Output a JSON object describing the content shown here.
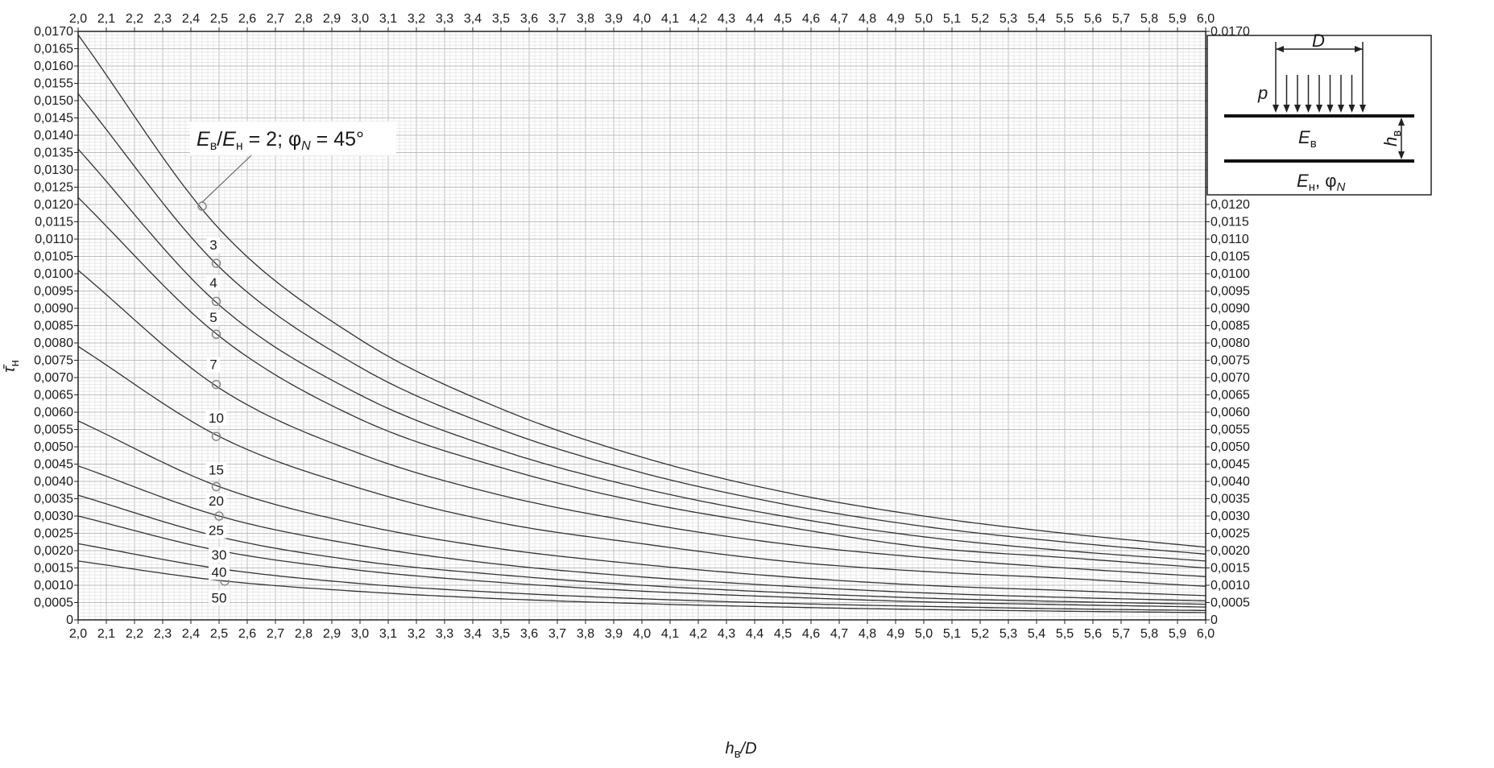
{
  "chart_data": {
    "type": "line",
    "xlabel": "h_в/D",
    "ylabel": "τ̄_н",
    "xlim": [
      2.0,
      6.0
    ],
    "ylim": [
      0,
      0.017
    ],
    "x_ticks": [
      "2,0",
      "2,1",
      "2,2",
      "2,3",
      "2,4",
      "2,5",
      "2,6",
      "2,7",
      "2,8",
      "2,9",
      "3,0",
      "3,1",
      "3,2",
      "3,3",
      "3,4",
      "3,5",
      "3,6",
      "3,7",
      "3,8",
      "3,9",
      "4,0",
      "4,1",
      "4,2",
      "4,3",
      "4,4",
      "4,5",
      "4,6",
      "4,7",
      "4,8",
      "4,9",
      "5,0",
      "5,1",
      "5,2",
      "5,3",
      "5,4",
      "5,5",
      "5,6",
      "5,7",
      "5,8",
      "5,9",
      "6,0"
    ],
    "y_ticks": [
      "0",
      "0,0005",
      "0,0010",
      "0,0015",
      "0,0020",
      "0,0025",
      "0,0030",
      "0,0035",
      "0,0040",
      "0,0045",
      "0,0050",
      "0,0055",
      "0,0060",
      "0,0065",
      "0,0070",
      "0,0075",
      "0,0080",
      "0,0085",
      "0,0090",
      "0,0095",
      "0,0100",
      "0,0105",
      "0,0110",
      "0,0115",
      "0,0120",
      "0,0125",
      "0,0130",
      "0,0135",
      "0,0140",
      "0,0145",
      "0,0150",
      "0,0155",
      "0,0160",
      "0,0165",
      "0,0170"
    ],
    "grid": true,
    "x_axis_position": "top and bottom",
    "y_axis_position": "left and right",
    "x": [
      2.0,
      2.5,
      3.0,
      3.5,
      4.0,
      4.5,
      5.0,
      5.5,
      6.0
    ],
    "series": [
      {
        "name": "2",
        "values": [
          0.0169,
          0.0113,
          0.0081,
          0.0061,
          0.0047,
          0.0037,
          0.003,
          0.0025,
          0.0021
        ],
        "marker": {
          "x": 2.44,
          "y": 0.01195
        }
      },
      {
        "name": "3",
        "values": [
          0.0152,
          0.0102,
          0.0073,
          0.0055,
          0.00425,
          0.00335,
          0.0027,
          0.00225,
          0.0019
        ],
        "marker": {
          "x": 2.49,
          "y": 0.0103
        }
      },
      {
        "name": "4",
        "values": [
          0.0136,
          0.0091,
          0.0065,
          0.0049,
          0.0038,
          0.003,
          0.0024,
          0.002,
          0.0017
        ],
        "marker": {
          "x": 2.49,
          "y": 0.0092
        }
      },
      {
        "name": "5",
        "values": [
          0.0122,
          0.0082,
          0.0058,
          0.0044,
          0.0034,
          0.0027,
          0.0021,
          0.0018,
          0.0015
        ],
        "marker": {
          "x": 2.49,
          "y": 0.00825
        }
      },
      {
        "name": "7",
        "values": [
          0.0101,
          0.0067,
          0.0048,
          0.0036,
          0.0028,
          0.0022,
          0.0018,
          0.0015,
          0.00125
        ],
        "marker": {
          "x": 2.49,
          "y": 0.0068
        }
      },
      {
        "name": "10",
        "values": [
          0.0079,
          0.0053,
          0.0038,
          0.0028,
          0.0022,
          0.0017,
          0.0014,
          0.0012,
          0.00097
        ],
        "marker": {
          "x": 2.49,
          "y": 0.0053
        }
      },
      {
        "name": "15",
        "values": [
          0.00575,
          0.00385,
          0.00275,
          0.00205,
          0.0016,
          0.00125,
          0.001,
          0.00085,
          0.0007
        ],
        "marker": {
          "x": 2.49,
          "y": 0.00385
        }
      },
      {
        "name": "20",
        "values": [
          0.00445,
          0.003,
          0.00215,
          0.0016,
          0.00124,
          0.00098,
          0.00078,
          0.00065,
          0.00055
        ],
        "marker": {
          "x": 2.5,
          "y": 0.003
        }
      },
      {
        "name": "25",
        "values": [
          0.0036,
          0.0024,
          0.0017,
          0.0013,
          0.001,
          0.00079,
          0.00063,
          0.00053,
          0.00045
        ]
      },
      {
        "name": "30",
        "values": [
          0.003,
          0.002,
          0.00143,
          0.00108,
          0.00083,
          0.00066,
          0.00052,
          0.00044,
          0.00037
        ]
      },
      {
        "name": "40",
        "values": [
          0.0022,
          0.00148,
          0.00105,
          0.00079,
          0.00061,
          0.00048,
          0.00039,
          0.00032,
          0.00027
        ]
      },
      {
        "name": "50",
        "values": [
          0.0017,
          0.00114,
          0.00082,
          0.00061,
          0.00047,
          0.00037,
          0.0003,
          0.00025,
          0.00021
        ],
        "marker": {
          "x": 2.52,
          "y": 0.00112
        }
      }
    ],
    "curve_labels": [
      {
        "text": "3",
        "x": 2.48,
        "y": 0.0107
      },
      {
        "text": "4",
        "x": 2.48,
        "y": 0.0096
      },
      {
        "text": "5",
        "x": 2.48,
        "y": 0.0086
      },
      {
        "text": "7",
        "x": 2.48,
        "y": 0.00725
      },
      {
        "text": "10",
        "x": 2.49,
        "y": 0.0057
      },
      {
        "text": "15",
        "x": 2.49,
        "y": 0.0042
      },
      {
        "text": "20",
        "x": 2.49,
        "y": 0.0033
      },
      {
        "text": "25",
        "x": 2.49,
        "y": 0.00245
      },
      {
        "text": "30",
        "x": 2.5,
        "y": 0.00175
      },
      {
        "text": "40",
        "x": 2.5,
        "y": 0.00125
      },
      {
        "text": "50",
        "x": 2.5,
        "y": 0.0005
      }
    ],
    "callout": {
      "text": "E_в/E_н = 2; φ_N = 45°",
      "target_series": "2"
    },
    "inset": {
      "D": "D",
      "p": "p",
      "h_v": "h_в",
      "E_v": "E_в",
      "E_n_phi": "E_н, φ_N",
      "position": "top-right"
    }
  }
}
